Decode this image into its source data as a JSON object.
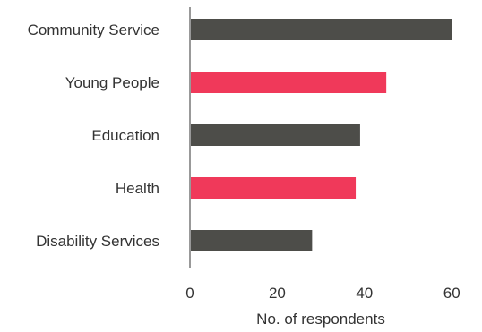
{
  "chart_data": {
    "type": "bar",
    "orientation": "horizontal",
    "categories": [
      "Community Service",
      "Young People",
      "Education",
      "Health",
      "Disability Services"
    ],
    "values": [
      60,
      45,
      39,
      38,
      28
    ],
    "xlabel": "No. of respondents",
    "ylabel": "",
    "xlim": [
      0,
      65
    ],
    "xticks": [
      0,
      20,
      40,
      60
    ],
    "grid": false,
    "legend": "none",
    "colors": [
      "#4d4d49",
      "#f0395a",
      "#4d4d49",
      "#f0395a",
      "#4d4d49"
    ],
    "axis_color": "#999999"
  }
}
